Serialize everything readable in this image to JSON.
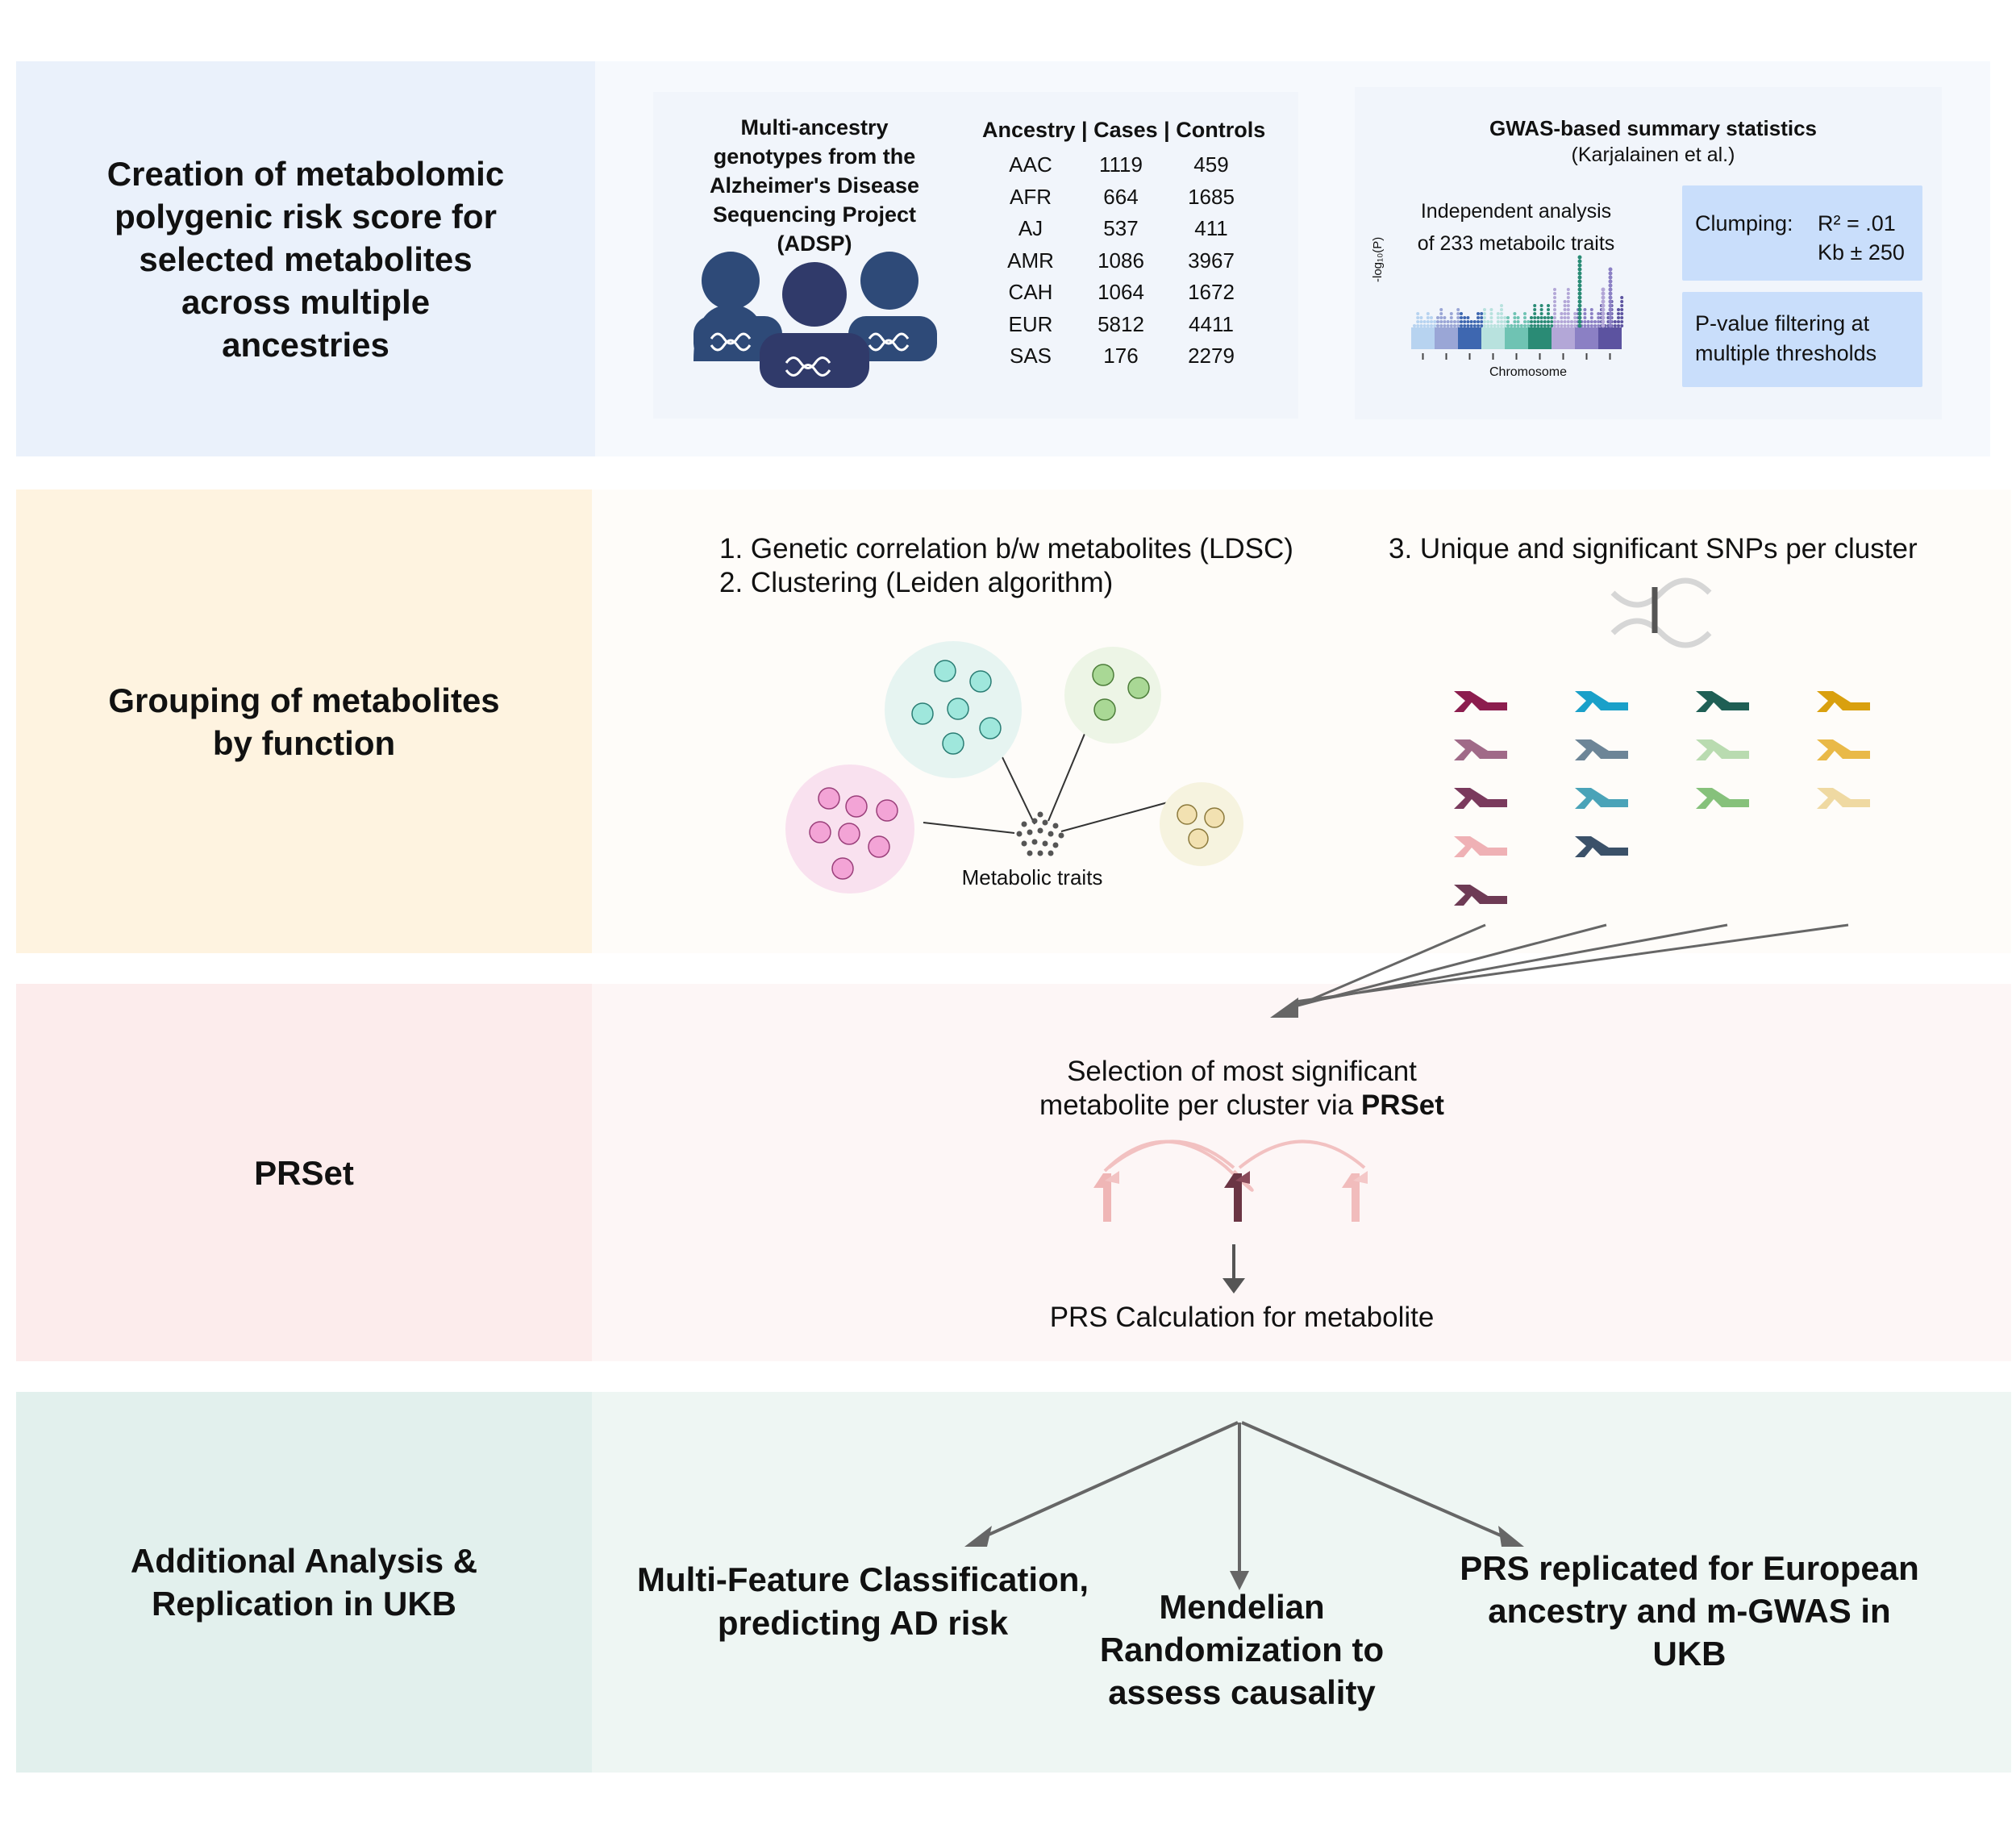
{
  "sections": [
    {
      "title": "Creation of metabolomic\npolygenic risk score  for\nselected metabolites\nacross multiple\nancestries"
    },
    {
      "title": "Grouping of metabolites\nby function"
    },
    {
      "title": "PRSet"
    },
    {
      "title": "Additional Analysis &\nReplication in UKB"
    }
  ],
  "adsp": {
    "caption": "Multi-ancestry\ngenotypes from the\nAlzheimer's Disease\nSequencing Project\n(ADSP)",
    "table_header": "Ancestry | Cases | Controls",
    "rows": [
      [
        "AAC",
        "1119",
        "459"
      ],
      [
        "AFR",
        "664",
        "1685"
      ],
      [
        "AJ",
        "537",
        "411"
      ],
      [
        "AMR",
        "1086",
        "3967"
      ],
      [
        "CAH",
        "1064",
        "1672"
      ],
      [
        "EUR",
        "5812",
        "4411"
      ],
      [
        "SAS",
        "176",
        "2279"
      ]
    ]
  },
  "gwas": {
    "title": "GWAS-based summary statistics",
    "citation": "(Karjalainen et al.)",
    "analysis": "Independent analysis\nof 233 metaboilc traits",
    "ylabel": "-log₁₀(P)",
    "xlabel": "Chromosome",
    "clumping_label": "Clumping:",
    "clumping_r2": "R² = .01",
    "clumping_kb": "Kb ± 250",
    "pvalue_filter": "P-value filtering at\nmultiple thresholds"
  },
  "grouping": {
    "step1": "1.  Genetic correlation b/w metabolites (LDSC)",
    "step2": "2.  Clustering (Leiden algorithm)",
    "step3": "3. Unique and significant SNPs per cluster",
    "traits_label": "Metabolic traits"
  },
  "prset": {
    "selection_line1": "Selection of most significant",
    "selection_line2_pre": "metabolite per cluster via ",
    "selection_line2_bold": "PRSet",
    "calculation": "PRS Calculation for metabolite"
  },
  "outcomes": {
    "classification": "Multi-Feature Classification,\npredicting AD risk",
    "mendelian": "Mendelian\nRandomization to\nassess causality",
    "replication": "PRS replicated for European\nancestry and m-GWAS in\nUKB"
  },
  "colors": {
    "band1_left": "#eaf1fb",
    "band1_right": "#f6f9fd",
    "band2_left": "#fef3e0",
    "band2_right": "#fefcf9",
    "band3_left": "#fcecec",
    "band3_right": "#fdf6f6",
    "band4_left": "#e2f0ed",
    "band4_right": "#eef6f3",
    "people": "#2e4a78",
    "clump_box": "#c9defb"
  }
}
